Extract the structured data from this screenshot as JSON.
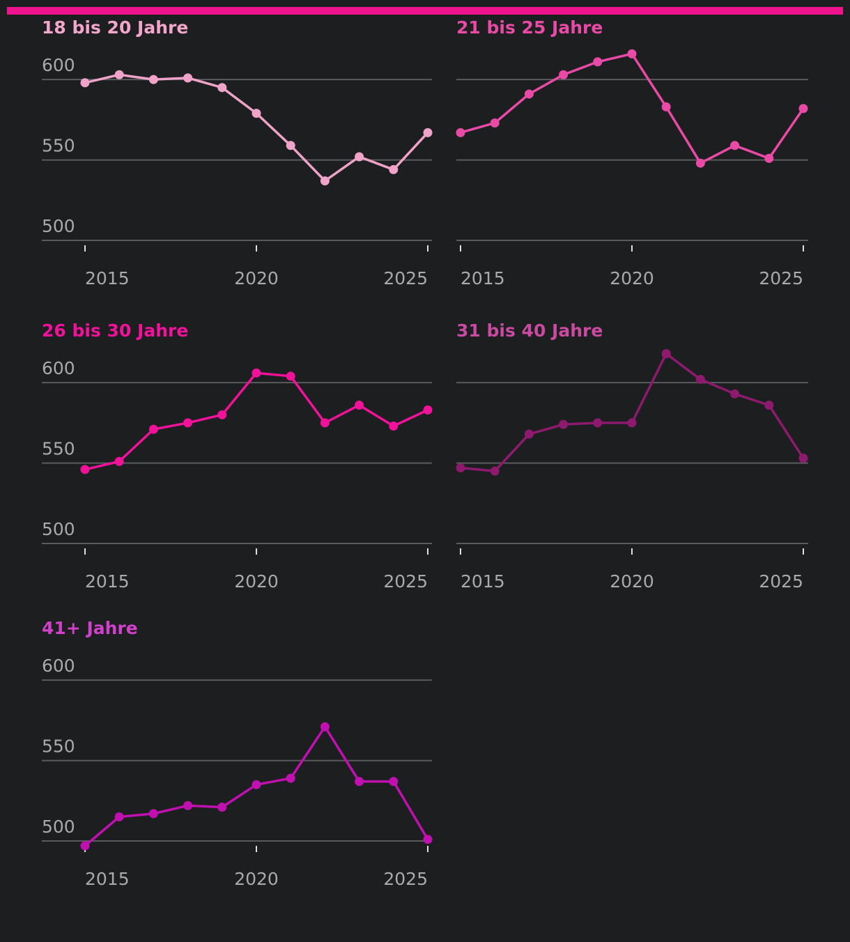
{
  "chart_data": [
    {
      "type": "line",
      "title": "18 bis 20 Jahre",
      "title_color": "#f3a6cc",
      "color": "#f0a3c8",
      "x": [
        2015,
        2016,
        2017,
        2018,
        2019,
        2020,
        2021,
        2022,
        2023,
        2024,
        2025
      ],
      "values": [
        598,
        603,
        600,
        601,
        595,
        579,
        559,
        537,
        552,
        544,
        567
      ],
      "xlim": [
        2015,
        2025
      ],
      "xticks": [
        2015,
        2020,
        2025
      ],
      "ylim": [
        500,
        620
      ],
      "yticks": [
        500,
        550,
        600
      ],
      "grid": true
    },
    {
      "type": "line",
      "title": "21 bis 25 Jahre",
      "title_color": "#e84aa6",
      "color": "#e84aa6",
      "x": [
        2015,
        2016,
        2017,
        2018,
        2019,
        2020,
        2021,
        2022,
        2023,
        2024,
        2025
      ],
      "values": [
        567,
        573,
        591,
        603,
        611,
        616,
        583,
        548,
        559,
        551,
        582
      ],
      "xlim": [
        2015,
        2025
      ],
      "xticks": [
        2015,
        2020,
        2025
      ],
      "ylim": [
        500,
        620
      ],
      "yticks": [
        500,
        550,
        600
      ],
      "grid": true
    },
    {
      "type": "line",
      "title": "26 bis 30 Jahre",
      "title_color": "#f0139a",
      "color": "#f0139a",
      "x": [
        2015,
        2016,
        2017,
        2018,
        2019,
        2020,
        2021,
        2022,
        2023,
        2024,
        2025
      ],
      "values": [
        546,
        551,
        571,
        575,
        580,
        606,
        604,
        575,
        586,
        573,
        583
      ],
      "xlim": [
        2015,
        2025
      ],
      "xticks": [
        2015,
        2020,
        2025
      ],
      "ylim": [
        500,
        620
      ],
      "yticks": [
        500,
        550,
        600
      ],
      "grid": true
    },
    {
      "type": "line",
      "title": "31 bis 40 Jahre",
      "title_color": "#c94aa0",
      "color": "#8e1a6e",
      "x": [
        2015,
        2016,
        2017,
        2018,
        2019,
        2020,
        2021,
        2022,
        2023,
        2024,
        2025
      ],
      "values": [
        547,
        545,
        568,
        574,
        575,
        575,
        618,
        602,
        593,
        586,
        553
      ],
      "xlim": [
        2015,
        2025
      ],
      "xticks": [
        2015,
        2020,
        2025
      ],
      "ylim": [
        500,
        620
      ],
      "yticks": [
        500,
        550,
        600
      ],
      "grid": true
    },
    {
      "type": "line",
      "title": "41+ Jahre",
      "title_color": "#d040c8",
      "color": "#c010b0",
      "x": [
        2015,
        2016,
        2017,
        2018,
        2019,
        2020,
        2021,
        2022,
        2023,
        2024,
        2025
      ],
      "values": [
        497,
        515,
        517,
        522,
        521,
        535,
        539,
        571,
        537,
        537,
        501
      ],
      "xlim": [
        2015,
        2025
      ],
      "xticks": [
        2015,
        2020,
        2025
      ],
      "ylim": [
        500,
        620
      ],
      "yticks": [
        500,
        550,
        600
      ],
      "grid": true
    }
  ]
}
